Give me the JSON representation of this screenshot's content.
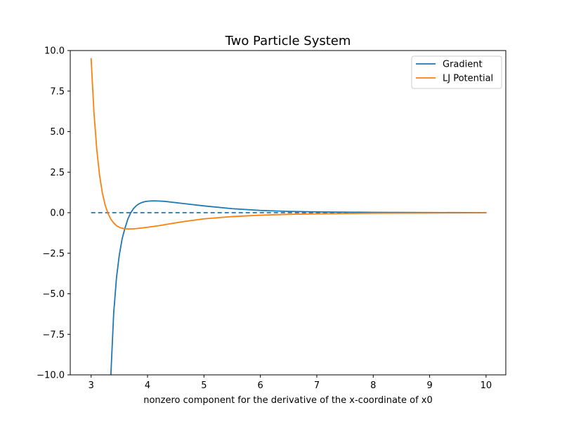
{
  "chart_data": {
    "type": "line",
    "title": "Two Particle System",
    "xlabel": "nonzero component for the derivative of the x-coordinate of x0",
    "ylabel": "",
    "xlim": [
      2.63,
      10.35
    ],
    "ylim": [
      -10.0,
      10.0
    ],
    "xticks": [
      3,
      4,
      5,
      6,
      7,
      8,
      9,
      10
    ],
    "yticks": [
      -10.0,
      -7.5,
      -5.0,
      -2.5,
      0.0,
      2.5,
      5.0,
      7.5,
      10.0
    ],
    "grid": false,
    "legend_position": "top-right",
    "x_range": [
      3.0,
      10.0
    ],
    "series": [
      {
        "name": "Gradient",
        "color": "#1f77b4",
        "style": "solid",
        "x": [
          3.35,
          3.4,
          3.45,
          3.5,
          3.55,
          3.6,
          3.65,
          3.7,
          3.75,
          3.8,
          3.85,
          3.9,
          3.95,
          4.0,
          4.1,
          4.2,
          4.3,
          4.4,
          4.5,
          4.75,
          5.0,
          5.5,
          6.0,
          6.5,
          7.0,
          8.0,
          9.0,
          10.0
        ],
        "y": [
          -10.0,
          -6.2,
          -4.0,
          -2.6,
          -1.6,
          -0.95,
          -0.4,
          -0.02,
          0.25,
          0.43,
          0.55,
          0.63,
          0.68,
          0.71,
          0.73,
          0.72,
          0.7,
          0.66,
          0.62,
          0.52,
          0.42,
          0.25,
          0.14,
          0.08,
          0.05,
          0.02,
          0.01,
          0.0
        ]
      },
      {
        "name": "LJ Potential",
        "color": "#ff7f0e",
        "style": "solid",
        "x": [
          3.0,
          3.05,
          3.1,
          3.15,
          3.2,
          3.25,
          3.3,
          3.35,
          3.4,
          3.45,
          3.5,
          3.55,
          3.6,
          3.65,
          3.7,
          3.75,
          3.8,
          3.85,
          3.9,
          4.0,
          4.2,
          4.4,
          4.6,
          4.8,
          5.0,
          5.5,
          6.0,
          6.5,
          7.0,
          8.0,
          9.0,
          10.0
        ],
        "y": [
          9.5,
          6.2,
          3.9,
          2.3,
          1.2,
          0.45,
          -0.05,
          -0.4,
          -0.63,
          -0.8,
          -0.9,
          -0.96,
          -0.99,
          -1.0,
          -1.0,
          -0.99,
          -0.98,
          -0.96,
          -0.94,
          -0.9,
          -0.8,
          -0.68,
          -0.57,
          -0.47,
          -0.38,
          -0.24,
          -0.15,
          -0.1,
          -0.07,
          -0.03,
          -0.02,
          -0.01
        ]
      }
    ],
    "reference_line": {
      "y": 0.0,
      "x_range": [
        3.0,
        10.0
      ],
      "color": "#1f77b4",
      "style": "dashed"
    }
  }
}
